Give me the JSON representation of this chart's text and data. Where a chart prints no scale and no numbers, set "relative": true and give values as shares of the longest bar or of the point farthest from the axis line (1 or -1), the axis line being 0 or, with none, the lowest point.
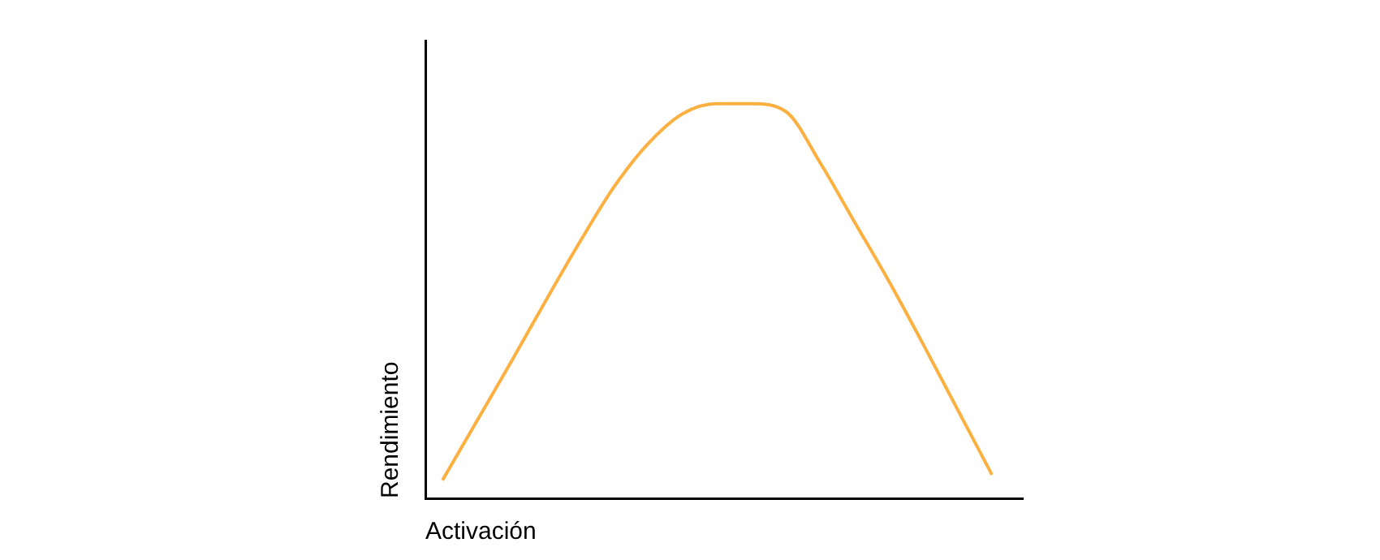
{
  "chart_data": {
    "type": "line",
    "xlabel": "Activación",
    "ylabel": "Rendimiento",
    "relative": true,
    "grid": false,
    "legend": false,
    "marker": "none",
    "categories": [
      null,
      null,
      null,
      null,
      null,
      null,
      null,
      null,
      null,
      null,
      null,
      null,
      null,
      null,
      null,
      null,
      null
    ],
    "series": [
      {
        "color": "#fbb040",
        "values": [
          0.046,
          0.196,
          0.346,
          0.5,
          0.65,
          0.79,
          0.9,
          0.975,
          1,
          1,
          0.98,
          0.85,
          0.7,
          0.55,
          0.39,
          0.225,
          0.06
        ]
      }
    ]
  }
}
